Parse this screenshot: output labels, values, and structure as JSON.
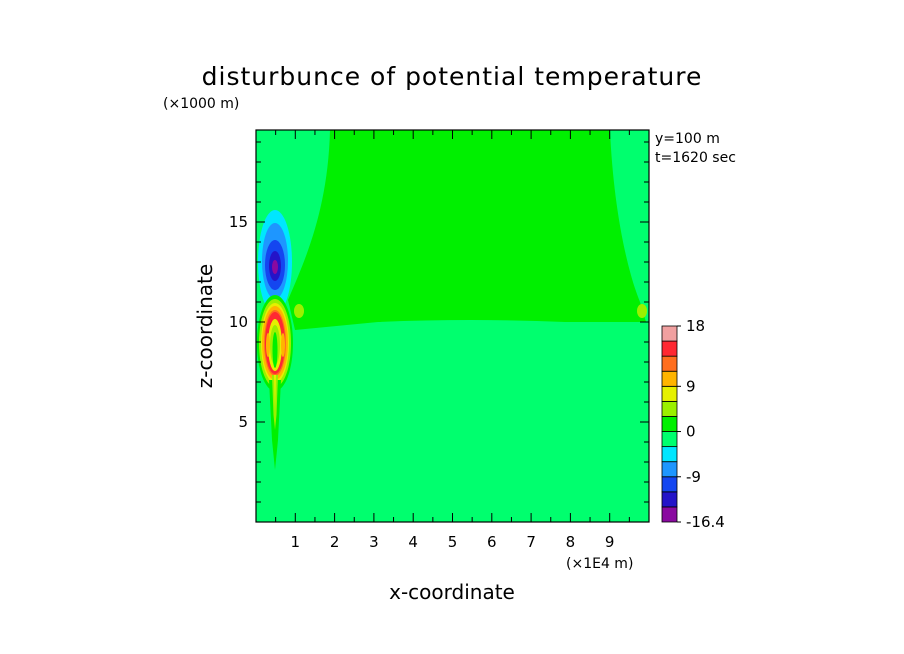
{
  "chart_data": {
    "type": "heatmap",
    "title": "disturbunce of potential temperature",
    "xlabel": "x-coordinate",
    "ylabel": "z-coordinate",
    "x_unit": "(×1E4 m)",
    "y_unit": "(×1000 m)",
    "annotations": [
      "y=100 m",
      "t=1620 sec"
    ],
    "xlim": [
      0,
      10
    ],
    "ylim": [
      0,
      19.6
    ],
    "x_ticks": [
      1,
      2,
      3,
      4,
      5,
      6,
      7,
      8,
      9
    ],
    "y_ticks": [
      5,
      10,
      15
    ],
    "colorbar": {
      "tick_labels": [
        "18",
        "9",
        "0",
        "-9",
        "-16.4"
      ],
      "tick_values": [
        18,
        9,
        0,
        -9,
        -16.4
      ],
      "levels": [
        -16.4,
        -14,
        -11,
        -8,
        -5,
        -2,
        0,
        2,
        5,
        8,
        11,
        14,
        17,
        18
      ],
      "colors": [
        "#8a0aa0",
        "#2414c8",
        "#1446f0",
        "#1e96ff",
        "#00e6ff",
        "#00ff6e",
        "#00f000",
        "#9bf000",
        "#e6f000",
        "#ffb400",
        "#ff6e1e",
        "#ff2832",
        "#f0a0a0"
      ]
    },
    "features": [
      {
        "label": "upper-neutral-region",
        "value": 0.5,
        "z_min": 10.2,
        "z_max": 19.6,
        "x_min": 0.2,
        "x_max": 9.9
      },
      {
        "label": "lower-neutral-region",
        "value": -0.5,
        "z_min": 0,
        "z_max": 10.2,
        "x_min": 0,
        "x_max": 10
      },
      {
        "label": "cold-core",
        "x": 0.45,
        "z": 12.8,
        "value": -16.4
      },
      {
        "label": "warm-core",
        "x": 0.5,
        "z": 9.3,
        "value": 18
      }
    ]
  }
}
